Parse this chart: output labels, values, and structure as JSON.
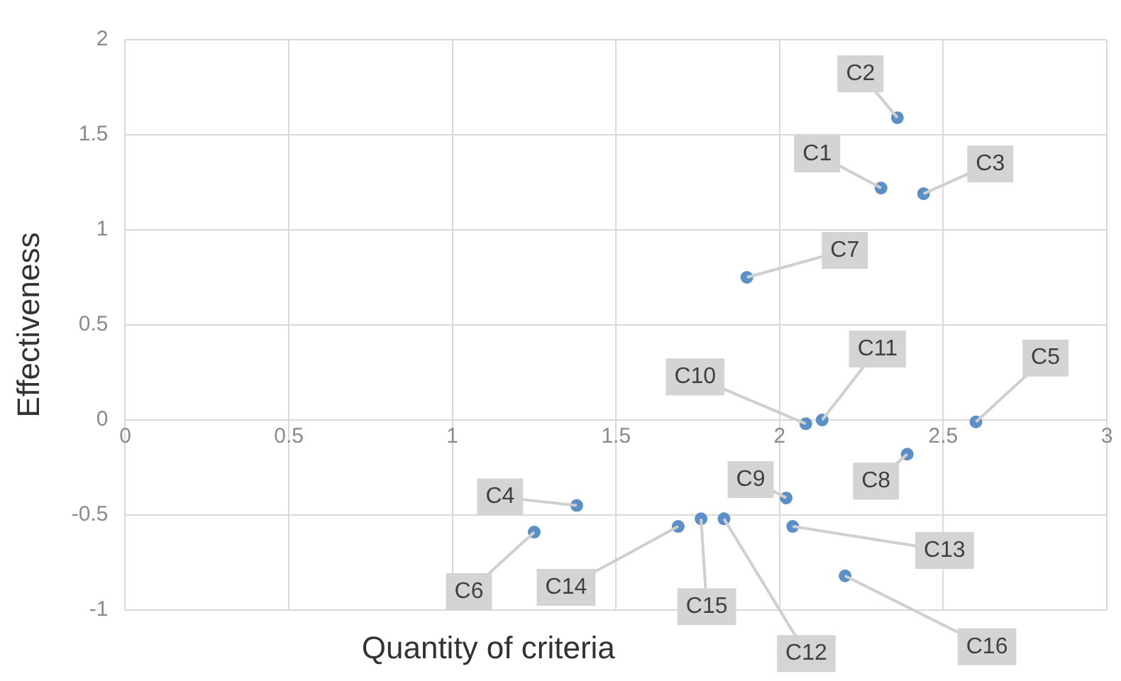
{
  "chart_data": {
    "type": "scatter",
    "xlabel": "Quantity of criteria",
    "ylabel": "Effectiveness",
    "x": [
      2.31,
      2.36,
      2.44,
      1.38,
      2.6,
      1.25,
      1.9,
      2.39,
      2.02,
      2.08,
      2.13,
      1.83,
      2.04,
      1.69,
      1.76,
      2.2
    ],
    "series": [
      {
        "color": "#5b8fc7",
        "values": [
          1.22,
          1.59,
          1.19,
          -0.45,
          -0.01,
          -0.59,
          0.75,
          -0.18,
          -0.41,
          -0.02,
          0,
          -0.52,
          -0.56,
          -0.56,
          -0.52,
          -0.82
        ]
      }
    ],
    "annotations": [
      {
        "text": "C1",
        "x": 2.31,
        "y": 1.22
      },
      {
        "text": "C2",
        "x": 2.36,
        "y": 1.59
      },
      {
        "text": "C3",
        "x": 2.44,
        "y": 1.19
      },
      {
        "text": "C4",
        "x": 1.38,
        "y": -0.45
      },
      {
        "text": "C5",
        "x": 2.6,
        "y": -0.01
      },
      {
        "text": "C6",
        "x": 1.25,
        "y": -0.59
      },
      {
        "text": "C7",
        "x": 1.9,
        "y": 0.75
      },
      {
        "text": "C8",
        "x": 2.39,
        "y": -0.18
      },
      {
        "text": "C9",
        "x": 2.02,
        "y": -0.41
      },
      {
        "text": "C10",
        "x": 2.08,
        "y": -0.02
      },
      {
        "text": "C11",
        "x": 2.13,
        "y": 0
      },
      {
        "text": "C12",
        "x": 1.83,
        "y": -0.52
      },
      {
        "text": "C13",
        "x": 2.04,
        "y": -0.56
      },
      {
        "text": "C14",
        "x": 1.69,
        "y": -0.56
      },
      {
        "text": "C15",
        "x": 1.76,
        "y": -0.52
      },
      {
        "text": "C16",
        "x": 2.2,
        "y": -0.82
      }
    ],
    "xlim": [
      0,
      3
    ],
    "xticks": [
      0,
      0.5,
      1,
      1.5,
      2,
      2.5,
      3
    ],
    "ylim": [
      -1,
      2
    ],
    "yticks": [
      -1,
      -0.5,
      0,
      0.5,
      1,
      1.5,
      2
    ],
    "grid": true,
    "legend": false,
    "marker": "circle"
  }
}
